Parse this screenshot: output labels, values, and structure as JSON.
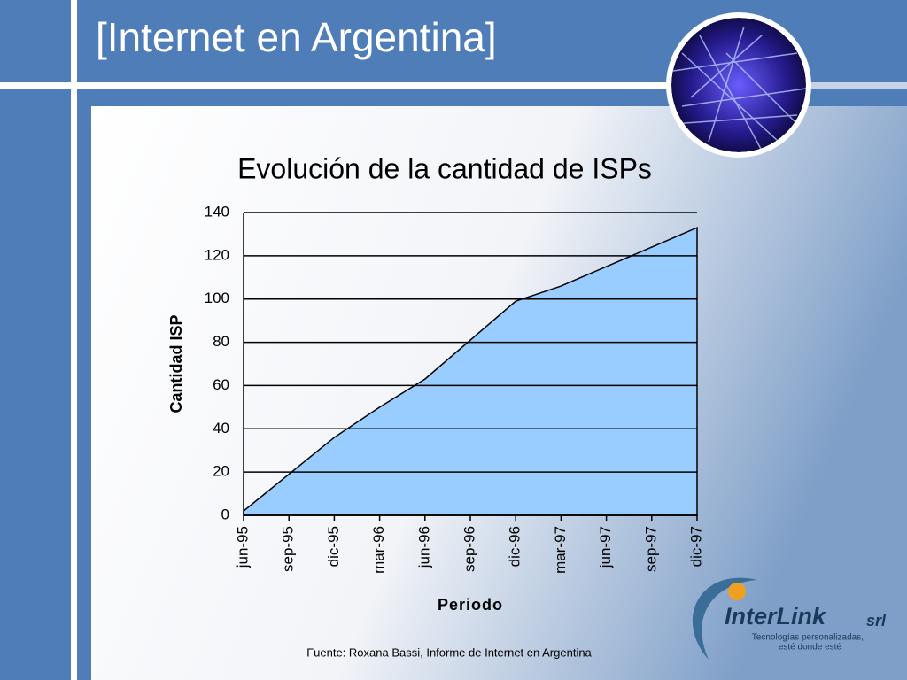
{
  "slide_title": "[Internet en Argentina]",
  "source": "Fuente: Roxana Bassi, Informe de Internet en Argentina",
  "logo": {
    "name": "InterLink",
    "suffix": "srl",
    "tagline_1": "Tecnologías personalizadas,",
    "tagline_2": "esté donde esté"
  },
  "chart_data": {
    "type": "area",
    "title": "Evolución de la cantidad de ISPs",
    "x_label": "Periodo",
    "y_label": "Cantidad ISP",
    "categories": [
      "jun-95",
      "sep-95",
      "dic-95",
      "mar-96",
      "jun-96",
      "sep-96",
      "dic-96",
      "mar-97",
      "jun-97",
      "sep-97",
      "dic-97"
    ],
    "values": [
      2,
      19,
      36,
      50,
      63,
      81,
      99,
      106,
      115,
      124,
      133
    ],
    "color": "#99ccff",
    "ylim": [
      0,
      140
    ],
    "yticks": [
      0,
      20,
      40,
      60,
      80,
      100,
      120,
      140
    ],
    "grid": true
  }
}
